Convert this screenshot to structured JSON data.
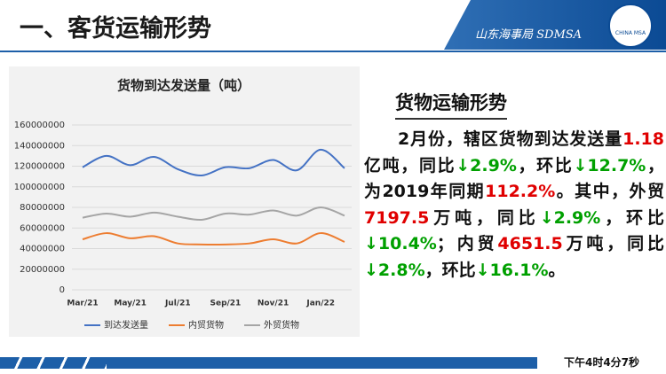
{
  "header": {
    "title": "一、客货运输形势",
    "brand": "山东海事局 SDMSA",
    "logo_text": "CHINA MSA"
  },
  "chart_data": {
    "type": "line",
    "title": "货物到达发送量（吨）",
    "categories": [
      "Mar/21",
      null,
      "May/21",
      null,
      "Jul/21",
      null,
      "Sep/21",
      null,
      "Nov/21",
      null,
      "Jan/22",
      null
    ],
    "series": [
      {
        "name": "到达发送量",
        "color": "#4472c4",
        "values": [
          119000000,
          130000000,
          121000000,
          129000000,
          117000000,
          111000000,
          119000000,
          118000000,
          126000000,
          116000000,
          136000000,
          118000000
        ]
      },
      {
        "name": "内贸货物",
        "color": "#ed7d31",
        "values": [
          49000000,
          55000000,
          50000000,
          52000000,
          45000000,
          44000000,
          44000000,
          45000000,
          49000000,
          45000000,
          55000000,
          46515000
        ]
      },
      {
        "name": "外贸货物",
        "color": "#a5a5a5",
        "values": [
          70000000,
          74000000,
          71000000,
          75000000,
          71000000,
          68000000,
          74000000,
          73000000,
          77000000,
          72000000,
          80000000,
          71975000
        ]
      }
    ],
    "ylim": [
      0,
      160000000
    ],
    "yticks": [
      0,
      20000000,
      40000000,
      60000000,
      80000000,
      100000000,
      120000000,
      140000000,
      160000000
    ],
    "grid": true,
    "legend": "bottom"
  },
  "text": {
    "heading": "货物运输形势",
    "runs": [
      {
        "text": "2月份，辖区货物到达发送量"
      },
      {
        "text": "1.18",
        "color": "#e00000"
      },
      {
        "text": "亿吨，同比"
      },
      {
        "text": "↓2.9%",
        "color": "#00a000"
      },
      {
        "text": "，环比"
      },
      {
        "text": "↓12.7%",
        "color": "#00a000"
      },
      {
        "text": "，为2019年同期"
      },
      {
        "text": "112.2%",
        "color": "#e00000"
      },
      {
        "text": "。其中，外贸"
      },
      {
        "text": "7197.5",
        "color": "#e00000"
      },
      {
        "text": "万吨，同比"
      },
      {
        "text": "↓2.9%",
        "color": "#00a000"
      },
      {
        "text": "，环比"
      },
      {
        "text": "↓10.4%",
        "color": "#00a000"
      },
      {
        "text": "；内贸"
      },
      {
        "text": "4651.5",
        "color": "#e00000"
      },
      {
        "text": "万吨，同比"
      },
      {
        "text": "↓2.8%",
        "color": "#00a000"
      },
      {
        "text": "，环比"
      },
      {
        "text": "↓16.1%",
        "color": "#00a000"
      },
      {
        "text": "。"
      }
    ]
  },
  "footer": {
    "time": "下午4时4分7秒"
  }
}
